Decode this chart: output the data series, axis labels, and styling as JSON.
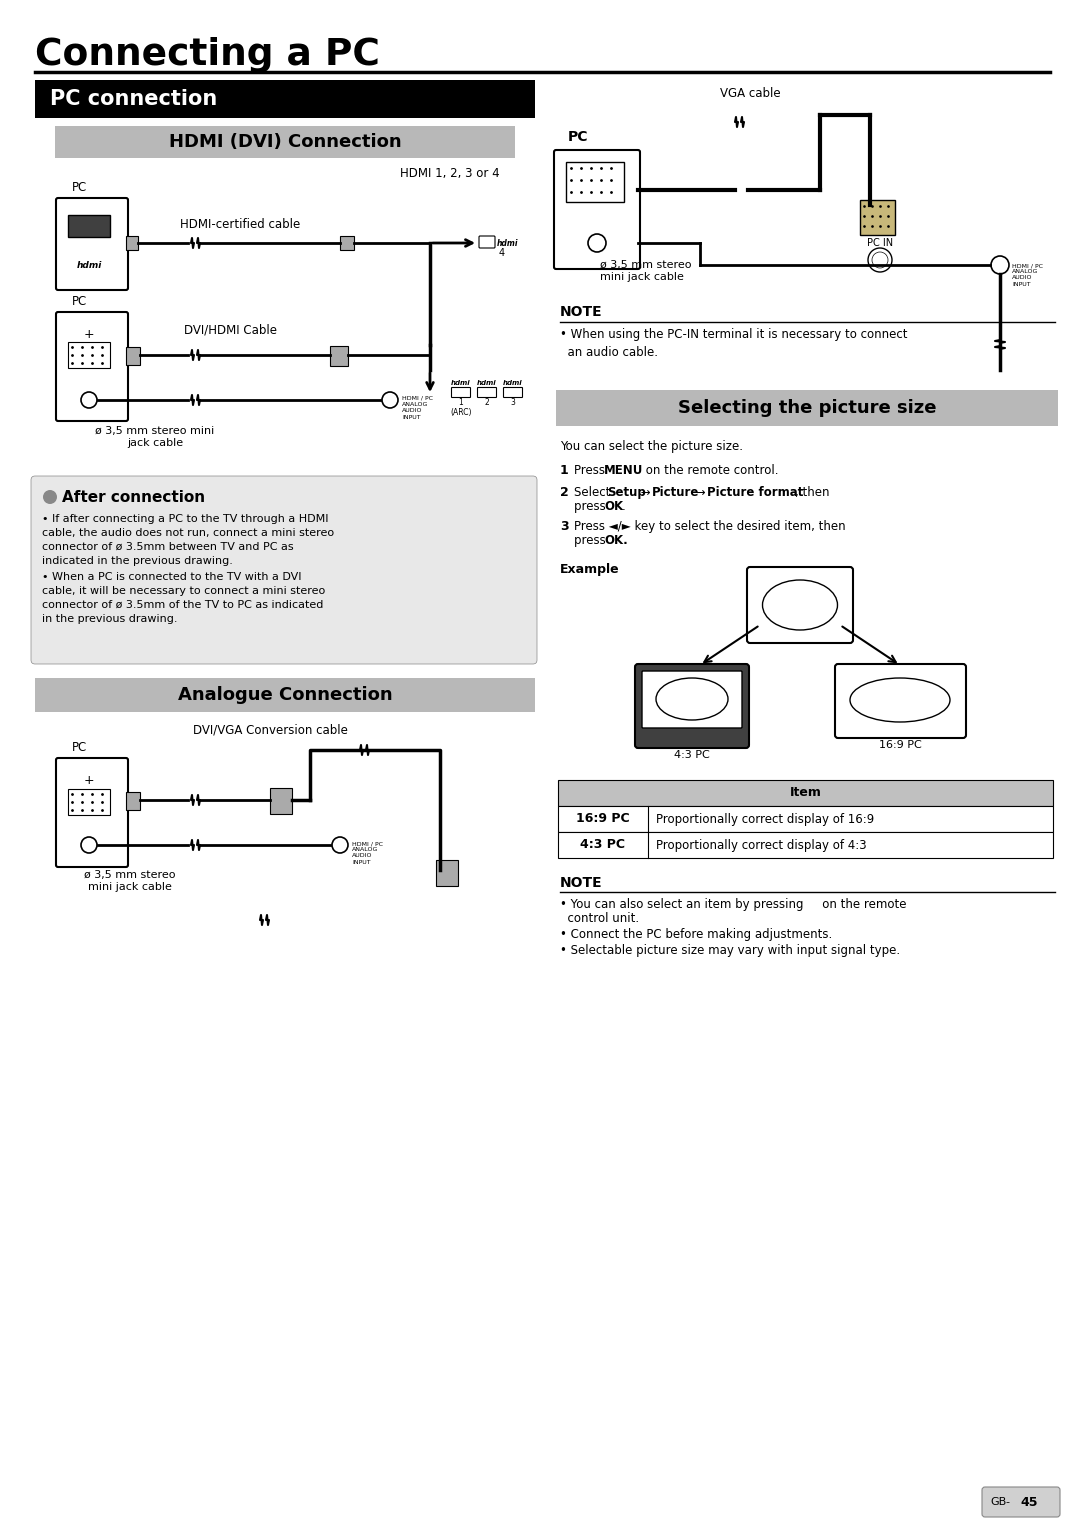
{
  "title": "Connecting a PC",
  "page_bg": "#ffffff",
  "section1_title": "PC connection",
  "subsection1_title": "HDMI (DVI) Connection",
  "subsection2_title": "Analogue Connection",
  "select_picture_title": "Selecting the picture size",
  "hdmi_label": "HDMI 1, 2, 3 or 4",
  "hdmi_certified_cable": "HDMI-certified cable",
  "dvi_hdmi_cable": "DVI/HDMI Cable",
  "stereo_mini_jack_dvi": "ø 3,5 mm stereo mini\njack cable",
  "stereo_mini_jack_analogue": "ø 3,5 mm stereo\nmini jack cable",
  "stereo_mini_jack_right": "ø 3,5 mm stereo\nmini jack cable",
  "after_connection_title": "After connection",
  "after_connection_bullet1": "• If after connecting a PC to the TV through a HDMI\ncable, the audio does not run, connect a mini stereo\nconnector of ø 3.5mm between TV and PC as\nindicated in the previous drawing.",
  "after_connection_bullet2": "• When a PC is connected to the TV with a DVI\ncable, it will be necessary to connect a mini stereo\nconnector of ø 3.5mm of the TV to PC as indicated\nin the previous drawing.",
  "analogue_conn_cable": "DVI/VGA Conversion cable",
  "vga_cable_label": "VGA cable",
  "note1_title": "NOTE",
  "note1_bullet": "• When using the PC-IN terminal it is necessary to connect\n  an audio cable.",
  "note2_title": "NOTE",
  "note2_bullet1": "• You can also select an item by pressing     on the remote",
  "note2_bullet1b": "  control unit.",
  "note2_bullet2": "• Connect the PC before making adjustments.",
  "note2_bullet3": "• Selectable picture size may vary with input signal type.",
  "select_picture_text": "You can select the picture size.",
  "step1_num": "1",
  "step1_bold": "MENU",
  "step1_pre": "Press ",
  "step1_post": " on the remote control.",
  "step2_num": "2",
  "step2_text": "Select Setup → Picture → Picture format, then\npress OK.",
  "step3_num": "3",
  "step3_text": "Press ◄/► key to select the desired item, then\npress OK.",
  "example_label": "Example",
  "table_header": "Item",
  "table_row1_key": "16:9 PC",
  "table_row1_val": "Proportionally correct display of 16:9",
  "table_row2_key": "4:3 PC",
  "table_row2_val": "Proportionally correct display of 4:3",
  "label_43pc": "4:3 PC",
  "label_169pc": "16:9 PC",
  "pc_in_label": "PC IN",
  "hdmi_pc_audio": "HDMI / PC\nANALOG\nAUDIO\nINPUT",
  "page_num": "45"
}
